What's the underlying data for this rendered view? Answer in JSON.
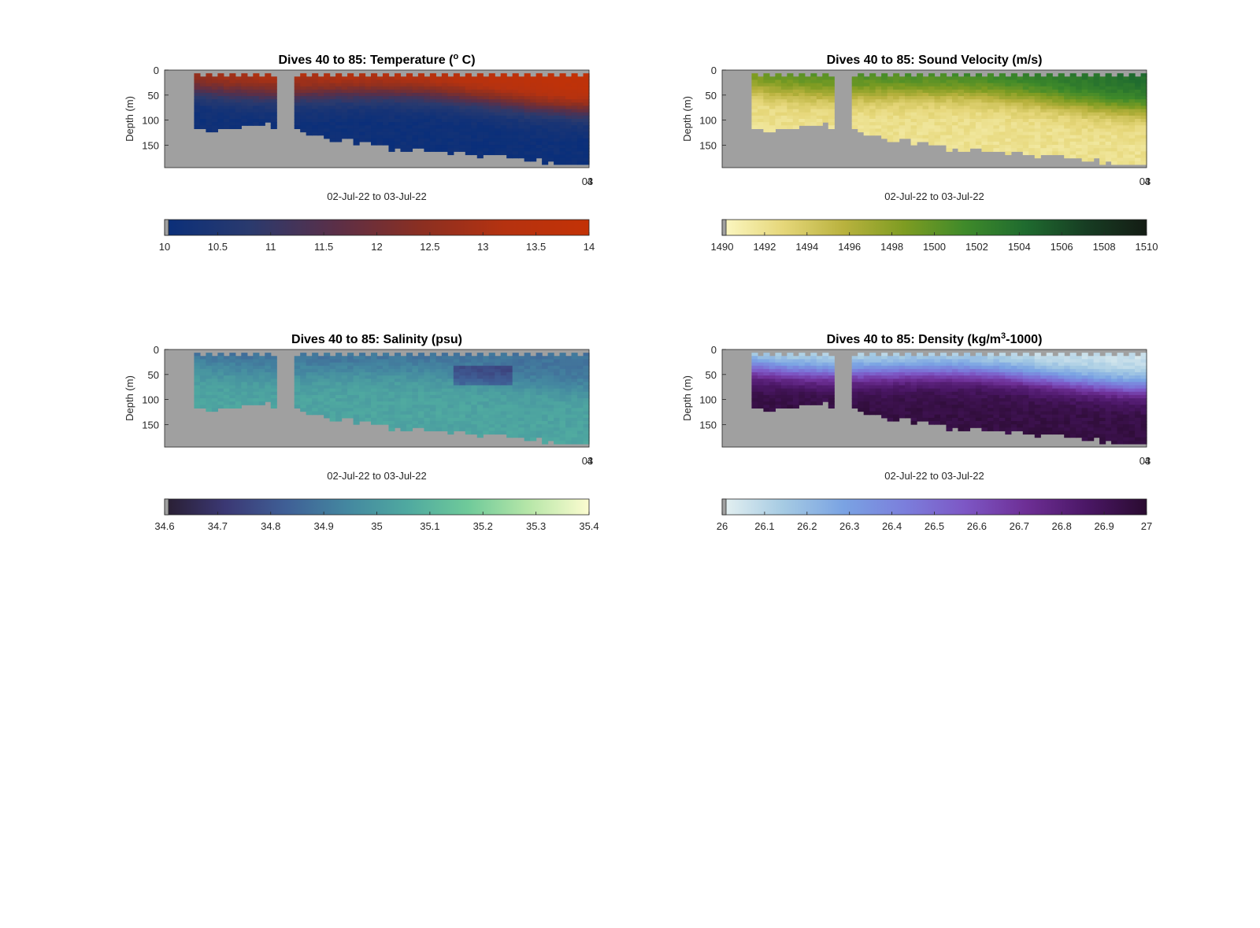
{
  "chart_data": [
    {
      "type": "heatmap",
      "title_main": "Dives 40 to 85: Temperature (",
      "title_sup_o": "o",
      "title_tail": " C)",
      "ylabel": "Depth (m)",
      "xlabel": "02-Jul-22 to 03-Jul-22",
      "y_ticks": [
        "0",
        "50",
        "100",
        "150"
      ],
      "y_tick_values": [
        0,
        50,
        100,
        150
      ],
      "ylim": [
        0,
        195
      ],
      "x_tick_label": "03",
      "x_tick_label_overlap": "4",
      "colormap": [
        "#0a2f7a",
        "#2a3a6e",
        "#5a2f48",
        "#8a2f22",
        "#b53210",
        "#c33206"
      ],
      "colorbar_ticks": [
        "10",
        "10.5",
        "11",
        "11.5",
        "12",
        "12.5",
        "13",
        "13.5",
        "14"
      ],
      "colorbar_range": [
        10,
        14
      ],
      "variable": "temperature"
    },
    {
      "type": "heatmap",
      "title_main": "Dives 40 to 85: Sound Velocity (m/s)",
      "ylabel": "Depth (m)",
      "xlabel": "02-Jul-22 to 03-Jul-22",
      "y_ticks": [
        "0",
        "50",
        "100",
        "150"
      ],
      "y_tick_values": [
        0,
        50,
        100,
        150
      ],
      "ylim": [
        0,
        195
      ],
      "x_tick_label": "03",
      "x_tick_label_overlap": "4",
      "colormap": [
        "#fcf8c4",
        "#e6d77a",
        "#b9b23e",
        "#7e9c22",
        "#3f8a2a",
        "#1f6b2f",
        "#173d23",
        "#141c14"
      ],
      "colorbar_ticks": [
        "1490",
        "1492",
        "1494",
        "1496",
        "1498",
        "1500",
        "1502",
        "1504",
        "1506",
        "1508",
        "1510"
      ],
      "colorbar_range": [
        1490,
        1510
      ],
      "variable": "sound-velocity"
    },
    {
      "type": "heatmap",
      "title_main": "Dives 40 to 85: Salinity (psu)",
      "ylabel": "Depth (m)",
      "xlabel": "02-Jul-22 to 03-Jul-22",
      "y_ticks": [
        "0",
        "50",
        "100",
        "150"
      ],
      "y_tick_values": [
        0,
        50,
        100,
        150
      ],
      "ylim": [
        0,
        195
      ],
      "x_tick_label": "03",
      "x_tick_label_overlap": "4",
      "colormap": [
        "#291e31",
        "#3b3874",
        "#3f5f96",
        "#4487a0",
        "#4fa9a0",
        "#6fca9a",
        "#b6e6a8",
        "#fcfcd0"
      ],
      "colorbar_ticks": [
        "34.6",
        "34.7",
        "34.8",
        "34.9",
        "35",
        "35.1",
        "35.2",
        "35.3",
        "35.4"
      ],
      "colorbar_range": [
        34.6,
        35.4
      ],
      "variable": "salinity"
    },
    {
      "type": "heatmap",
      "title_main": "Dives 40 to 85: Density (kg/m",
      "title_sup_o": "3",
      "title_tail": "-1000)",
      "ylabel": "Depth (m)",
      "xlabel": "02-Jul-22 to 03-Jul-22",
      "y_ticks": [
        "0",
        "50",
        "100",
        "150"
      ],
      "y_tick_values": [
        0,
        50,
        100,
        150
      ],
      "ylim": [
        0,
        195
      ],
      "x_tick_label": "03",
      "x_tick_label_overlap": "4",
      "colormap": [
        "#e6f1f1",
        "#a6cbe3",
        "#7aa3e3",
        "#7b7fdc",
        "#7d57c5",
        "#6e2f96",
        "#4b1766",
        "#2a0b30"
      ],
      "colorbar_ticks": [
        "26",
        "26.1",
        "26.2",
        "26.3",
        "26.4",
        "26.5",
        "26.6",
        "26.7",
        "26.8",
        "26.9",
        "27"
      ],
      "colorbar_range": [
        26,
        27
      ],
      "variable": "density"
    }
  ]
}
